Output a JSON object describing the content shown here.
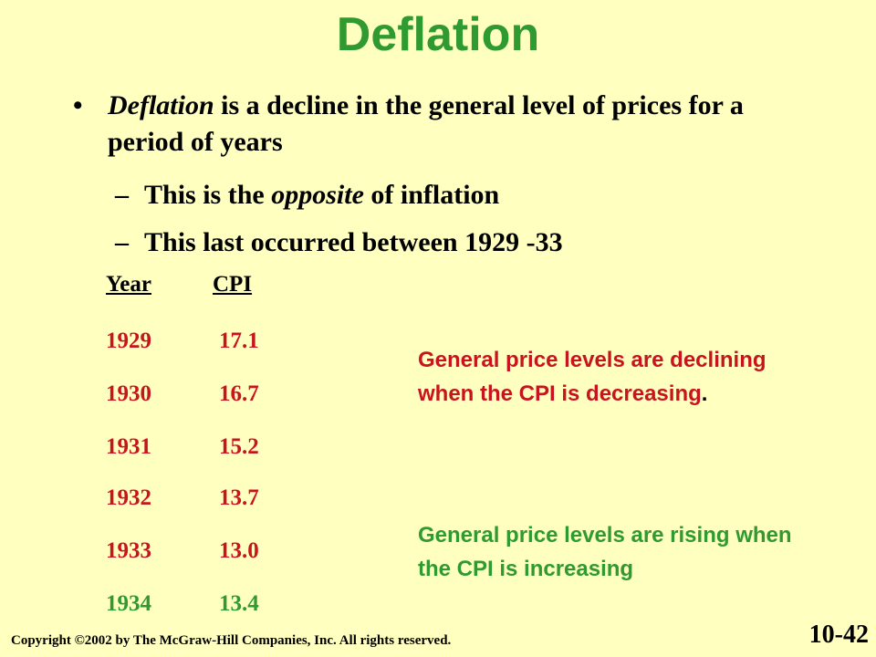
{
  "title": "Deflation",
  "bullet": {
    "term": "Deflation",
    "text_rest": " is a decline in the general level of prices for a period of years"
  },
  "subbullets": [
    {
      "pre": "This is the ",
      "em": "opposite",
      "post": " of inflation"
    },
    {
      "pre": "This last occurred between 1929 -33",
      "em": "",
      "post": ""
    }
  ],
  "table": {
    "headers": {
      "year": "Year",
      "cpi": "CPI"
    },
    "rows": [
      {
        "year": "1929",
        "cpi": "17.1"
      },
      {
        "year": "1930",
        "cpi": "16.7"
      },
      {
        "year": "1931",
        "cpi": "15.2"
      },
      {
        "year": "1932",
        "cpi": "13.7"
      },
      {
        "year": "1933",
        "cpi": "13.0"
      },
      {
        "year": "1934",
        "cpi": "13.4"
      }
    ]
  },
  "notes": {
    "declining_main": "General price levels are declining when the CPI is decreasing",
    "declining_end": ".",
    "rising": "General price levels are rising when the CPI is increasing"
  },
  "footer": {
    "copyright": "Copyright ©2002 by The McGraw-Hill Companies, Inc.  All rights reserved.",
    "page": "10-42"
  },
  "colors": {
    "background": "#ffffc0",
    "title": "#2f9a2f",
    "decline": "#c8141e",
    "rise": "#2f9a2f"
  }
}
